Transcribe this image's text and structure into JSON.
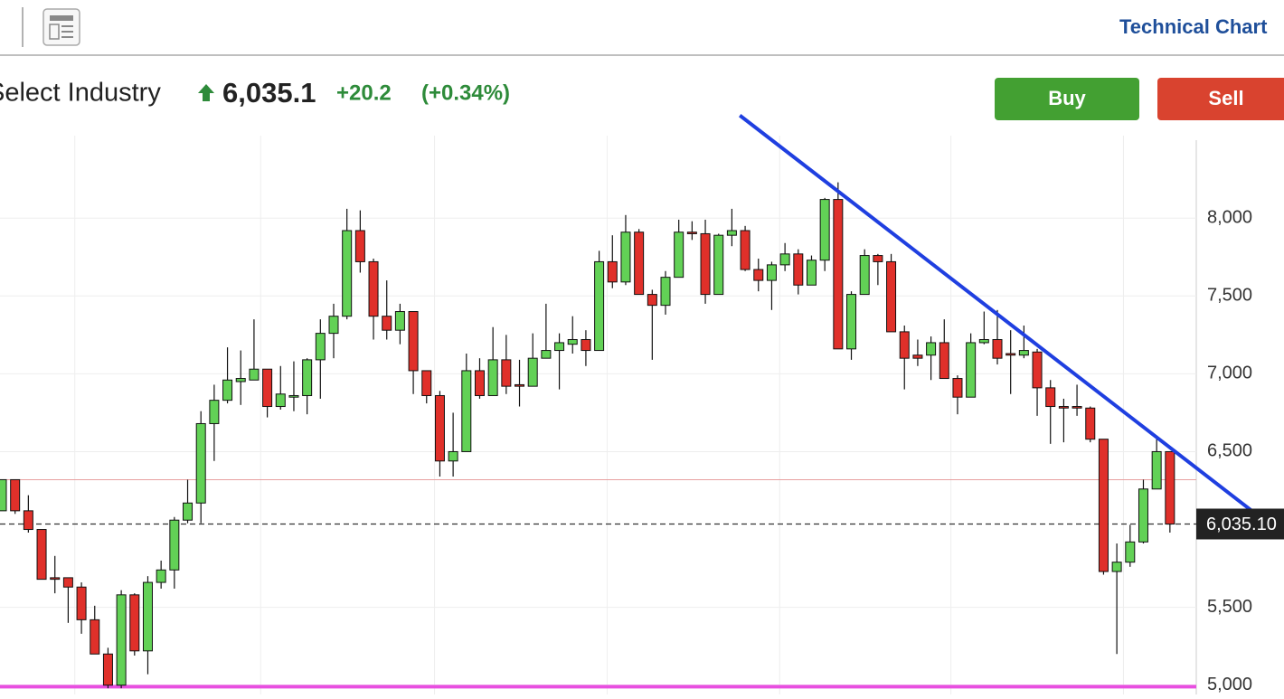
{
  "header": {
    "title": "Technical Chart",
    "index_name": "Select Industry",
    "price": {
      "value": 6035.1,
      "label": "6,035.1"
    },
    "change": {
      "value": 20.2,
      "label": "+20.2"
    },
    "change_pct": {
      "value": 0.34,
      "label": "(+0.34%)"
    },
    "buttons": [
      "Buy",
      "Sell"
    ]
  },
  "chart_data": {
    "type": "candlestick",
    "open": [
      6120,
      6320,
      6120,
      6000,
      5690,
      5690,
      5630,
      5420,
      5200,
      5000,
      5580,
      5220,
      5660,
      5740,
      6060,
      6170,
      6680,
      6830,
      6950,
      6960,
      7030,
      6790,
      6850,
      6860,
      7090,
      7260,
      7370,
      7920,
      7720,
      7370,
      7280,
      7400,
      7020,
      6860,
      6440,
      6500,
      7020,
      6860,
      7090,
      6930,
      6920,
      7100,
      7150,
      7190,
      7220,
      7150,
      7720,
      7590,
      7910,
      7510,
      7440,
      7620,
      7910,
      7900,
      7510,
      7890,
      7920,
      7670,
      7600,
      7700,
      7770,
      7570,
      7730,
      8120,
      7160,
      7510,
      7760,
      7720,
      7270,
      7120,
      7120,
      7200,
      6970,
      6850,
      7200,
      7220,
      7130,
      7120,
      7140,
      6910,
      6790,
      6790,
      6780,
      6580,
      5730,
      5790,
      5920,
      6260,
      6500
    ],
    "high": [
      6320,
      6320,
      6220,
      6000,
      5830,
      5690,
      5660,
      5510,
      5240,
      5610,
      5590,
      5700,
      5800,
      6080,
      6320,
      6760,
      6930,
      7170,
      7150,
      7350,
      7030,
      7050,
      7080,
      7100,
      7350,
      7450,
      8060,
      8050,
      7740,
      7600,
      7450,
      7400,
      7020,
      6890,
      6750,
      7130,
      7100,
      7300,
      7250,
      7090,
      7260,
      7450,
      7260,
      7370,
      7280,
      7790,
      7890,
      8020,
      7930,
      7540,
      7660,
      7990,
      7980,
      7990,
      7900,
      8060,
      7950,
      7740,
      7720,
      7840,
      7800,
      7760,
      8130,
      8230,
      7530,
      7800,
      7770,
      7770,
      7310,
      7220,
      7240,
      7350,
      6990,
      7260,
      7400,
      7410,
      7280,
      7310,
      7160,
      6960,
      6840,
      6930,
      6790,
      6580,
      5910,
      6030,
      6320,
      6580,
      6500
    ],
    "low": [
      6120,
      6100,
      5980,
      5680,
      5590,
      5400,
      5330,
      5200,
      4980,
      4980,
      5190,
      5070,
      5620,
      5620,
      6040,
      6040,
      6440,
      6810,
      6800,
      6960,
      6720,
      6770,
      6760,
      6740,
      6840,
      7100,
      7350,
      7650,
      7220,
      7220,
      7190,
      6870,
      6810,
      6340,
      6340,
      6500,
      6840,
      6860,
      6870,
      6790,
      6920,
      7100,
      6900,
      7130,
      7050,
      7150,
      7550,
      7570,
      7510,
      7090,
      7380,
      7620,
      7860,
      7450,
      7510,
      7820,
      7660,
      7530,
      7410,
      7660,
      7510,
      7570,
      7660,
      7160,
      7090,
      7510,
      7570,
      7270,
      6900,
      7050,
      6960,
      6970,
      6740,
      6850,
      7190,
      7060,
      6870,
      7100,
      6730,
      6550,
      6560,
      6730,
      6560,
      5710,
      5200,
      5760,
      5910,
      6260,
      5980
    ],
    "close": [
      6320,
      6120,
      6000,
      5680,
      5680,
      5630,
      5420,
      5200,
      5000,
      5580,
      5220,
      5660,
      5740,
      6060,
      6170,
      6680,
      6830,
      6960,
      6970,
      7030,
      6790,
      6870,
      6860,
      7090,
      7260,
      7370,
      7920,
      7720,
      7370,
      7280,
      7400,
      7020,
      6860,
      6440,
      6500,
      7020,
      6860,
      7090,
      6920,
      6920,
      7100,
      7150,
      7200,
      7220,
      7150,
      7720,
      7590,
      7910,
      7510,
      7440,
      7620,
      7910,
      7900,
      7510,
      7890,
      7920,
      7670,
      7600,
      7700,
      7770,
      7570,
      7730,
      8120,
      7160,
      7510,
      7760,
      7720,
      7270,
      7100,
      7100,
      7200,
      6970,
      6850,
      7200,
      7220,
      7100,
      7120,
      7150,
      6910,
      6790,
      6780,
      6780,
      6580,
      5730,
      5790,
      5920,
      6260,
      6500,
      6035.1
    ],
    "last_label": "6,035.10",
    "up_color": "#62d156",
    "down_color": "#e0302a",
    "ylim": [
      4940,
      8530
    ],
    "yticks": [
      {
        "value": 5000,
        "label": "5,000"
      },
      {
        "value": 5500,
        "label": "5,500"
      },
      {
        "value": 6500,
        "label": "6,500"
      },
      {
        "value": 7000,
        "label": "7,000"
      },
      {
        "value": 7500,
        "label": "7,500"
      },
      {
        "value": 8000,
        "label": "8,000"
      }
    ],
    "xticks": [
      5.5,
      19.5,
      32.6,
      45.6,
      58.6,
      71.5,
      84.5
    ],
    "grid": true,
    "hlines": [
      {
        "value": 6320,
        "color": "#e8a0a0"
      },
      {
        "value": 4990,
        "color": "#e84fe0"
      }
    ],
    "trendline": {
      "x": [
        55.6,
        96.6
      ],
      "y": [
        8660,
        5960
      ],
      "color": "#1f3fe0"
    }
  }
}
